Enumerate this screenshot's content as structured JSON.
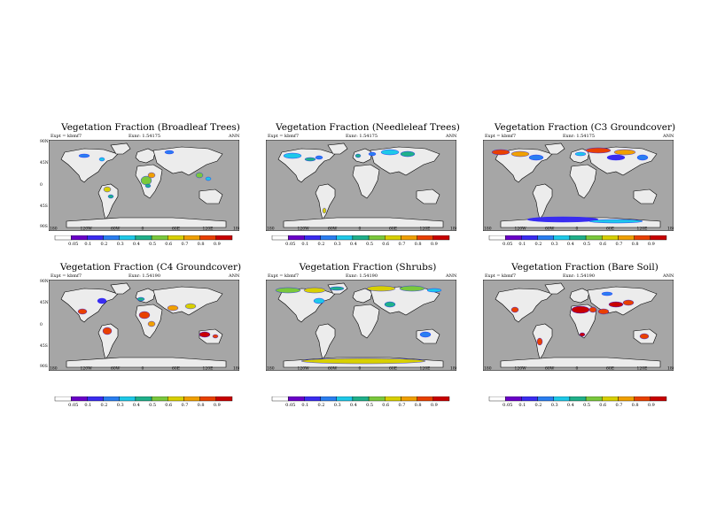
{
  "map_labels": {
    "lats_top": [
      "90N",
      "45N",
      "0",
      "45S",
      "90S"
    ],
    "lats_bottom": [
      "90N",
      "45N",
      "0",
      "45S",
      "90S"
    ],
    "lons": [
      "180",
      "120W",
      "60W",
      "0",
      "60E",
      "120E",
      "180"
    ]
  },
  "colorbar": {
    "ticks": [
      "0.05",
      "0.1",
      "0.2",
      "0.3",
      "0.4",
      "0.5",
      "0.6",
      "0.7",
      "0.8",
      "0.9"
    ],
    "colors": [
      "#ffffff",
      "#6a00c8",
      "#3a2cf0",
      "#2a7ef0",
      "#1ec8e8",
      "#20b08a",
      "#7ac83c",
      "#d8d000",
      "#f0a000",
      "#e84000",
      "#c80000"
    ]
  },
  "panels": [
    {
      "title": "Vegetation Fraction (Broadleaf Trees)",
      "left": "Expt = kbmf7",
      "center": "Exnr:  1.54175",
      "right": "ANN",
      "pattern": "broadleaf"
    },
    {
      "title": "Vegetation Fraction (Needleleaf Trees)",
      "left": "Expt = kbmf7",
      "center": "Exnr:  1.54175",
      "right": "ANN",
      "pattern": "needle"
    },
    {
      "title": "Vegetation Fraction (C3 Groundcover)",
      "left": "Expt = kbmf7",
      "center": "Exnr:  1.54175",
      "right": "ANN",
      "pattern": "c3"
    },
    {
      "title": "Vegetation Fraction (C4 Groundcover)",
      "left": "Expt = kbmf7",
      "center": "Exnr:  1.54190",
      "right": "ANN",
      "pattern": "c4"
    },
    {
      "title": "Vegetation Fraction (Shrubs)",
      "left": "Expt = kbmf7",
      "center": "Exnr:  1.54190",
      "right": "ANN",
      "pattern": "shrub"
    },
    {
      "title": "Vegetation Fraction (Bare Soil)",
      "left": "Expt = kbmf7",
      "center": "Exnr:  1.54190",
      "right": "ANN",
      "pattern": "bare"
    }
  ]
}
